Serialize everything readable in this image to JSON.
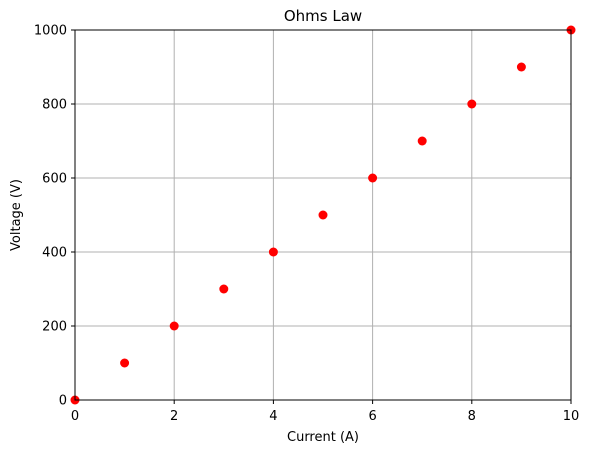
{
  "chart_data": {
    "type": "scatter",
    "title": "Ohms Law",
    "xlabel": "Current (A)",
    "ylabel": "Voltage (V)",
    "xlim": [
      0,
      10
    ],
    "ylim": [
      0,
      1000
    ],
    "xticks": [
      0,
      2,
      4,
      6,
      8,
      10
    ],
    "yticks": [
      0,
      200,
      400,
      600,
      800,
      1000
    ],
    "grid": true,
    "series": [
      {
        "x": [
          0,
          1,
          2,
          3,
          4,
          5,
          6,
          7,
          8,
          9,
          10
        ],
        "y": [
          0,
          100,
          200,
          300,
          400,
          500,
          600,
          700,
          800,
          900,
          1000
        ],
        "color": "#ff0000",
        "marker": "circle"
      }
    ]
  },
  "colors": {
    "grid": "#b0b0b0",
    "axes": "#000000",
    "background": "#ffffff"
  }
}
